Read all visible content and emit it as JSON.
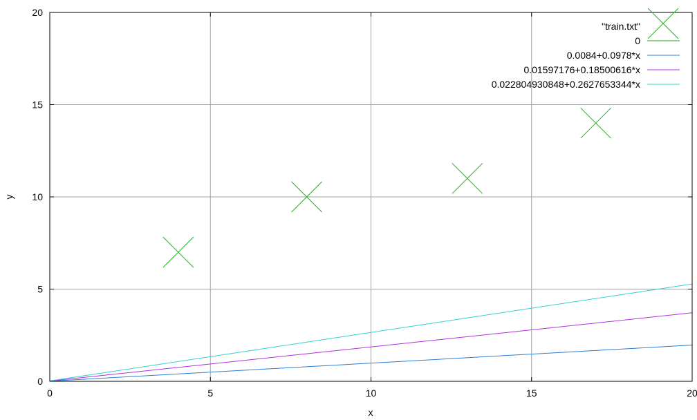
{
  "chart_data": {
    "type": "line",
    "title": "",
    "xlabel": "x",
    "ylabel": "y",
    "xlim": [
      0,
      20
    ],
    "ylim": [
      0,
      20
    ],
    "xticks": [
      "0",
      "5",
      "10",
      "15",
      "20"
    ],
    "yticks": [
      "0",
      "5",
      "10",
      "15",
      "20"
    ],
    "grid": true,
    "legend_position": "top-right",
    "series": [
      {
        "name": "\"train.txt\"",
        "kind": "scatter",
        "marker": "x",
        "color": "#22b022",
        "points": [
          [
            4,
            7
          ],
          [
            8,
            10
          ],
          [
            13,
            11
          ],
          [
            17,
            14
          ]
        ]
      },
      {
        "name": "0",
        "kind": "line",
        "color": "#20a020",
        "intercept": 0,
        "slope": 0
      },
      {
        "name": "0.0084+0.0978*x",
        "kind": "line",
        "color": "#2c7fd0",
        "intercept": 0.0084,
        "slope": 0.0978
      },
      {
        "name": "0.01597176+0.18500616*x",
        "kind": "line",
        "color": "#b030e0",
        "intercept": 0.01597176,
        "slope": 0.18500616
      },
      {
        "name": "0.022804930848+0.2627653344*x",
        "kind": "line",
        "color": "#30d0d0",
        "intercept": 0.022804930848,
        "slope": 0.2627653344
      }
    ]
  }
}
